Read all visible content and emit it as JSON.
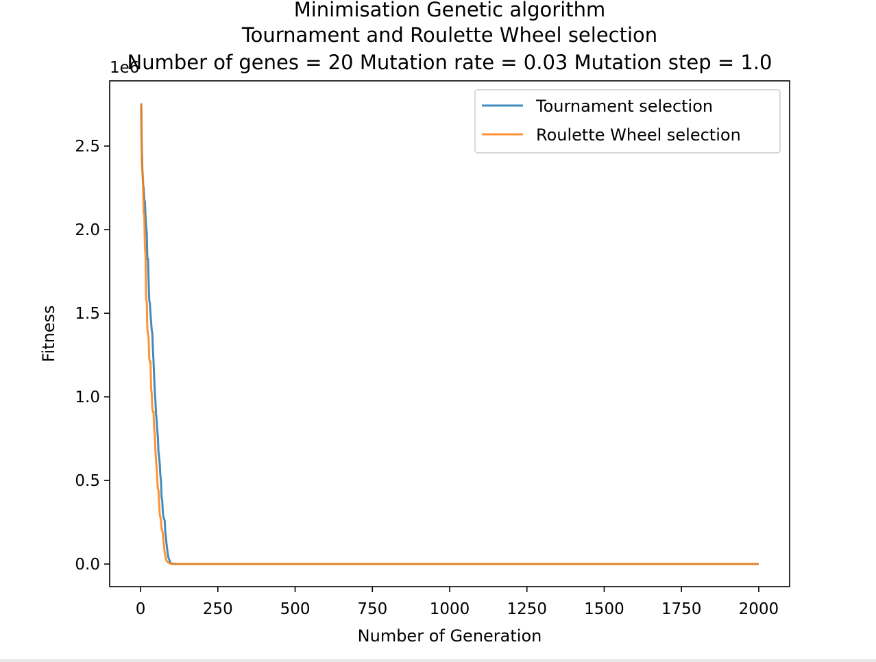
{
  "chart_data": {
    "type": "line",
    "title": [
      "Minimisation Genetic algorithm",
      "Tournament and Roulette Wheel selection",
      "Number of genes = 20 Mutation rate = 0.03 Mutation step = 1.0"
    ],
    "xlabel": "Number of Generation",
    "ylabel": "Fitness",
    "y_offset_label": "1e6",
    "xlim": [
      -100,
      2100
    ],
    "ylim": [
      -0.135,
      2.89
    ],
    "xticks": [
      0,
      250,
      500,
      750,
      1000,
      1250,
      1500,
      1750,
      2000
    ],
    "xtick_labels": [
      "0",
      "250",
      "500",
      "750",
      "1000",
      "1250",
      "1500",
      "1750",
      "2000"
    ],
    "yticks": [
      0.0,
      0.5,
      1.0,
      1.5,
      2.0,
      2.5
    ],
    "ytick_labels": [
      "0.0",
      "0.5",
      "1.0",
      "1.5",
      "2.0",
      "2.5"
    ],
    "grid": false,
    "legend_position": "top-right",
    "series": [
      {
        "name": "Tournament selection",
        "color": "#1f77b4",
        "x": [
          0,
          2,
          3,
          5,
          6,
          8,
          10,
          12,
          14,
          16,
          18,
          20,
          22,
          24,
          26,
          28,
          30,
          32,
          34,
          36,
          38,
          40,
          42,
          44,
          46,
          48,
          50,
          52,
          54,
          56,
          58,
          60,
          62,
          64,
          66,
          68,
          70,
          72,
          74,
          76,
          78,
          80,
          82,
          84,
          86,
          88,
          90,
          92,
          94,
          96,
          98,
          100,
          102,
          104,
          106,
          108,
          110,
          112,
          114,
          116,
          118,
          120,
          124,
          128,
          135,
          145,
          160,
          200,
          2000
        ],
        "y": [
          2.75,
          2.75,
          2.55,
          2.42,
          2.35,
          2.27,
          2.25,
          2.18,
          2.17,
          2.08,
          2.02,
          1.98,
          1.82,
          1.83,
          1.7,
          1.58,
          1.56,
          1.5,
          1.45,
          1.4,
          1.38,
          1.28,
          1.21,
          1.12,
          1.03,
          0.98,
          0.9,
          0.86,
          0.8,
          0.76,
          0.67,
          0.64,
          0.6,
          0.53,
          0.5,
          0.4,
          0.38,
          0.31,
          0.28,
          0.27,
          0.26,
          0.19,
          0.16,
          0.12,
          0.09,
          0.06,
          0.04,
          0.03,
          0.02,
          0.01,
          0.005,
          0.003,
          0.002,
          0.002,
          0.002,
          0.001,
          0.001,
          0.001,
          0.001,
          0.001,
          0.001,
          0.0,
          0.0,
          0.0,
          0.0,
          0.0,
          0.0,
          0.0,
          0.0
        ]
      },
      {
        "name": "Roulette Wheel selection",
        "color": "#ff7f0e",
        "x": [
          0,
          2,
          3,
          4,
          6,
          8,
          10,
          12,
          14,
          16,
          18,
          20,
          22,
          24,
          26,
          28,
          30,
          32,
          34,
          36,
          38,
          40,
          42,
          44,
          46,
          48,
          50,
          52,
          54,
          56,
          58,
          60,
          62,
          64,
          66,
          68,
          70,
          72,
          74,
          76,
          78,
          80,
          82,
          84,
          86,
          88,
          90,
          92,
          94,
          96,
          98,
          100,
          102,
          104,
          106,
          108,
          110,
          112,
          114,
          116,
          118,
          120,
          122,
          124,
          126,
          128,
          130,
          132,
          134,
          136,
          138,
          140,
          145,
          150,
          160,
          200,
          2000
        ],
        "y": [
          2.75,
          2.75,
          2.7,
          2.4,
          2.35,
          2.3,
          2.1,
          2.09,
          1.9,
          1.85,
          1.58,
          1.57,
          1.4,
          1.38,
          1.35,
          1.23,
          1.21,
          1.21,
          1.05,
          1.02,
          0.93,
          0.91,
          0.91,
          0.8,
          0.78,
          0.68,
          0.62,
          0.58,
          0.5,
          0.45,
          0.44,
          0.36,
          0.3,
          0.28,
          0.26,
          0.21,
          0.2,
          0.18,
          0.14,
          0.11,
          0.07,
          0.05,
          0.03,
          0.02,
          0.015,
          0.01,
          0.008,
          0.006,
          0.005,
          0.004,
          0.003,
          0.002,
          0.002,
          0.002,
          0.001,
          0.001,
          0.001,
          0.001,
          0.001,
          0.001,
          0.001,
          0.001,
          0.001,
          0.0,
          0.0,
          0.0,
          0.0,
          0.0,
          0.0,
          0.0,
          0.0,
          0.0,
          0.0,
          0.0,
          0.0,
          0.0,
          0.0
        ]
      }
    ]
  }
}
